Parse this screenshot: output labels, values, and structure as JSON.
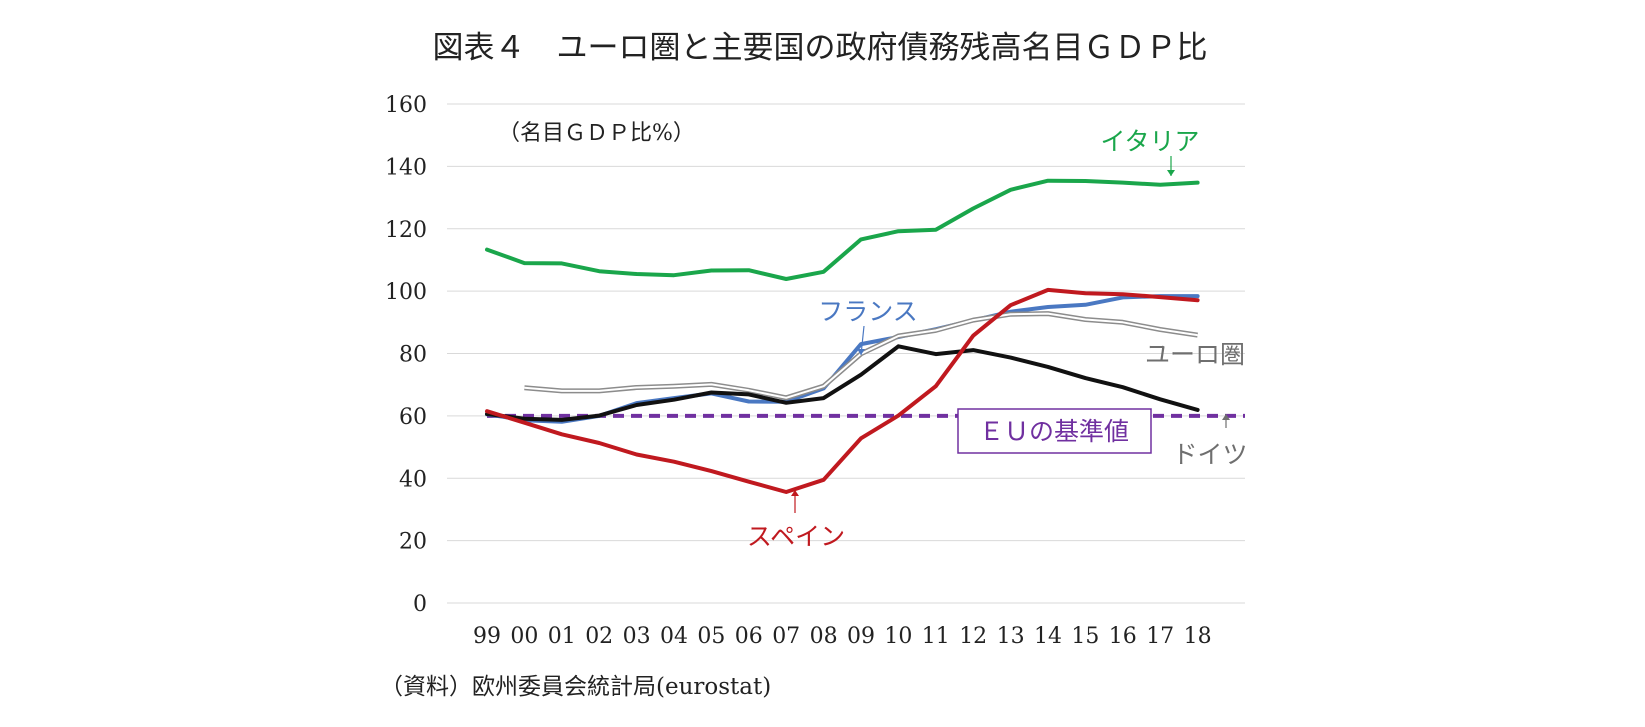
{
  "chart_data": {
    "type": "line",
    "title": "図表４　ユーロ圏と主要国の政府債務残高名目ＧＤＰ比",
    "unit_note": "（名目ＧＤＰ比%）",
    "source": "（資料）欧州委員会統計局(eurostat)",
    "categories": [
      "99",
      "00",
      "01",
      "02",
      "03",
      "04",
      "05",
      "06",
      "07",
      "08",
      "09",
      "10",
      "11",
      "12",
      "13",
      "14",
      "15",
      "16",
      "17",
      "18"
    ],
    "ylim": [
      0,
      160
    ],
    "yticks": [
      "0",
      "20",
      "40",
      "60",
      "80",
      "100",
      "120",
      "140",
      "160"
    ],
    "grid": true,
    "series": [
      {
        "name": "イタリア",
        "color": "#1aa64b",
        "values": [
          113.3,
          109.0,
          108.9,
          106.4,
          105.5,
          105.1,
          106.6,
          106.7,
          103.9,
          106.2,
          116.6,
          119.2,
          119.7,
          126.5,
          132.5,
          135.4,
          135.3,
          134.8,
          134.1,
          134.8
        ]
      },
      {
        "name": "フランス",
        "color": "#4a78c2",
        "values": [
          60.5,
          58.6,
          58.1,
          60.0,
          64.1,
          65.7,
          67.2,
          64.6,
          64.5,
          68.8,
          83.0,
          85.3,
          87.8,
          90.6,
          93.4,
          94.9,
          95.6,
          98.0,
          98.4,
          98.4
        ]
      },
      {
        "name": "ユーロ圏",
        "color": "#a0a0a0",
        "values": [
          null,
          69.0,
          68.0,
          68.0,
          69.1,
          69.5,
          70.1,
          68.2,
          65.8,
          69.5,
          79.9,
          85.6,
          87.4,
          90.7,
          92.6,
          92.8,
          90.9,
          90.0,
          87.7,
          85.9
        ]
      },
      {
        "name": "ドイツ",
        "color": "#111111",
        "values": [
          60.6,
          59.1,
          58.7,
          60.1,
          63.5,
          65.2,
          67.5,
          66.9,
          64.2,
          65.7,
          73.2,
          82.3,
          79.8,
          81.1,
          78.7,
          75.7,
          72.1,
          69.2,
          65.3,
          61.9
        ]
      },
      {
        "name": "スペイン",
        "color": "#c0191f",
        "values": [
          61.5,
          57.8,
          54.1,
          51.3,
          47.6,
          45.3,
          42.3,
          38.9,
          35.6,
          39.5,
          52.8,
          60.1,
          69.5,
          85.7,
          95.5,
          100.4,
          99.3,
          99.0,
          98.1,
          97.1
        ]
      }
    ],
    "reference_line": {
      "name": "ＥＵの基準値",
      "value": 60,
      "color": "#7030a0"
    }
  }
}
